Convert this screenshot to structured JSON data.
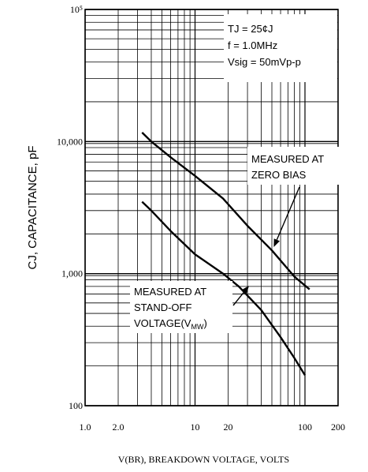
{
  "chart_data": {
    "type": "line",
    "xscale": "log",
    "yscale": "log",
    "xlim": [
      1,
      200
    ],
    "ylim": [
      100,
      100000
    ],
    "grid": true,
    "xlabel": "V(BR), BREAKDOWN VOLTAGE, VOLTS",
    "ylabel": "CJ, CAPACITANCE, pF",
    "x_tick_labels": [
      {
        "value": 1,
        "label": "1.0"
      },
      {
        "value": 2,
        "label": "2.0"
      },
      {
        "value": 10,
        "label": "10"
      },
      {
        "value": 20,
        "label": "20"
      },
      {
        "value": 100,
        "label": "100"
      },
      {
        "value": 200,
        "label": "200"
      }
    ],
    "y_tick_labels": [
      {
        "value": 100,
        "label": "100"
      },
      {
        "value": 1000,
        "label": "1,000"
      },
      {
        "value": 10000,
        "label": "10,000"
      },
      {
        "value": 100000,
        "label": "10⁵"
      }
    ],
    "conditions": [
      "TJ = 25¢J",
      "f = 1.0MHz",
      "Vsig = 50mVp-p"
    ],
    "series": [
      {
        "key": "zero_bias",
        "x": [
          3.3,
          4,
          6,
          10,
          18,
          30,
          50,
          80,
          110
        ],
        "y": [
          11700,
          10000,
          7600,
          5500,
          3700,
          2300,
          1500,
          950,
          760
        ]
      },
      {
        "key": "standoff",
        "x": [
          3.3,
          4,
          6,
          10,
          18,
          25,
          40,
          60,
          80,
          100
        ],
        "y": [
          3500,
          3000,
          2100,
          1400,
          1000,
          800,
          530,
          330,
          230,
          170
        ]
      }
    ],
    "annotations": [
      {
        "key": "zero_bias",
        "lines": [
          "MEASURED AT",
          "ZERO BIAS"
        ],
        "arrow_to": [
          52,
          1590
        ]
      },
      {
        "key": "standoff",
        "lines": [
          "MEASURED AT",
          "STAND-OFF",
          "VOLTAGE(V",
          ")"
        ],
        "subscript": "MW",
        "arrow_to": [
          31,
          810
        ]
      }
    ],
    "colors": {
      "line": "#000000",
      "grid": "#000000",
      "background": "#ffffff"
    }
  }
}
